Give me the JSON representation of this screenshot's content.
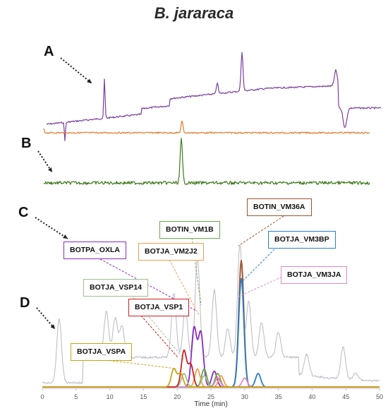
{
  "title": "B. jararaca",
  "panel_letters": {
    "a": "A",
    "b": "B",
    "c": "C",
    "d": "D"
  },
  "colors": {
    "trace_A": "#7b3fa0",
    "trace_B": "#e07b2e",
    "trace_C": "#3e7a1e",
    "trace_D_total": "#b8b8c4",
    "BOTPA_OXLA": "#8e2bc4",
    "BOTIN_VM1B": "#6aa84f",
    "BOTJA_VM2J2": "#f0a050",
    "BOTIN_VM36A": "#a0522d",
    "BOTJA_VM3BP": "#2a7fc8",
    "BOTJA_VM3JA": "#e08ad0",
    "BOTJA_VSP14": "#9fbf8f",
    "BOTJA_VSP1": "#cc2222",
    "BOTJA_VSPA": "#c9a416"
  },
  "labels": {
    "BOTIN_VM36A": "BOTIN_VM36A",
    "BOTIN_VM1B": "BOTIN_VM1B",
    "BOTPA_OXLA": "BOTPA_OXLA",
    "BOTJA_VM2J2": "BOTJA_VM2J2",
    "BOTJA_VM3BP": "BOTJA_VM3BP",
    "BOTJA_VM3JA": "BOTJA_VM3JA",
    "BOTJA_VSP14": "BOTJA_VSP14",
    "BOTJA_VSP1": "BOTJA_VSP1",
    "BOTJA_VSPA": "BOTJA_VSPA"
  },
  "chart_data": {
    "type": "line",
    "title": "B. jararaca",
    "xlabel": "Time (min)",
    "ylabel": "",
    "xlim": [
      0,
      50
    ],
    "xticks": [
      0,
      5,
      10,
      15,
      20,
      25,
      30,
      35,
      40,
      45,
      50
    ],
    "grid": false,
    "series": [
      {
        "name": "BOTPA_OXLA",
        "peaks": [
          [
            22.5,
            0.26
          ],
          [
            23.5,
            0.24
          ],
          [
            25.5,
            0.07
          ]
        ]
      },
      {
        "name": "BOTIN_VM1B",
        "peaks": [
          [
            24.0,
            0.08
          ],
          [
            26.0,
            0.06
          ]
        ]
      },
      {
        "name": "BOTJA_VM2J2",
        "peaks": [
          [
            23.0,
            0.08
          ],
          [
            26.5,
            0.05
          ]
        ]
      },
      {
        "name": "BOTIN_VM36A",
        "peaks": [
          [
            29.5,
            0.56
          ]
        ]
      },
      {
        "name": "BOTJA_VM3BP",
        "peaks": [
          [
            29.5,
            0.48
          ],
          [
            32.0,
            0.06
          ]
        ]
      },
      {
        "name": "BOTJA_VM3JA",
        "peaks": [
          [
            30.0,
            0.04
          ],
          [
            26.0,
            0.04
          ]
        ]
      },
      {
        "name": "BOTJA_VSP14",
        "peaks": [
          [
            21.0,
            0.06
          ],
          [
            24.0,
            0.05
          ]
        ]
      },
      {
        "name": "BOTJA_VSP1",
        "peaks": [
          [
            21.0,
            0.16
          ],
          [
            22.0,
            0.1
          ]
        ]
      },
      {
        "name": "BOTJA_VSPA",
        "peaks": [
          [
            19.5,
            0.08
          ],
          [
            20.5,
            0.06
          ]
        ]
      }
    ]
  }
}
